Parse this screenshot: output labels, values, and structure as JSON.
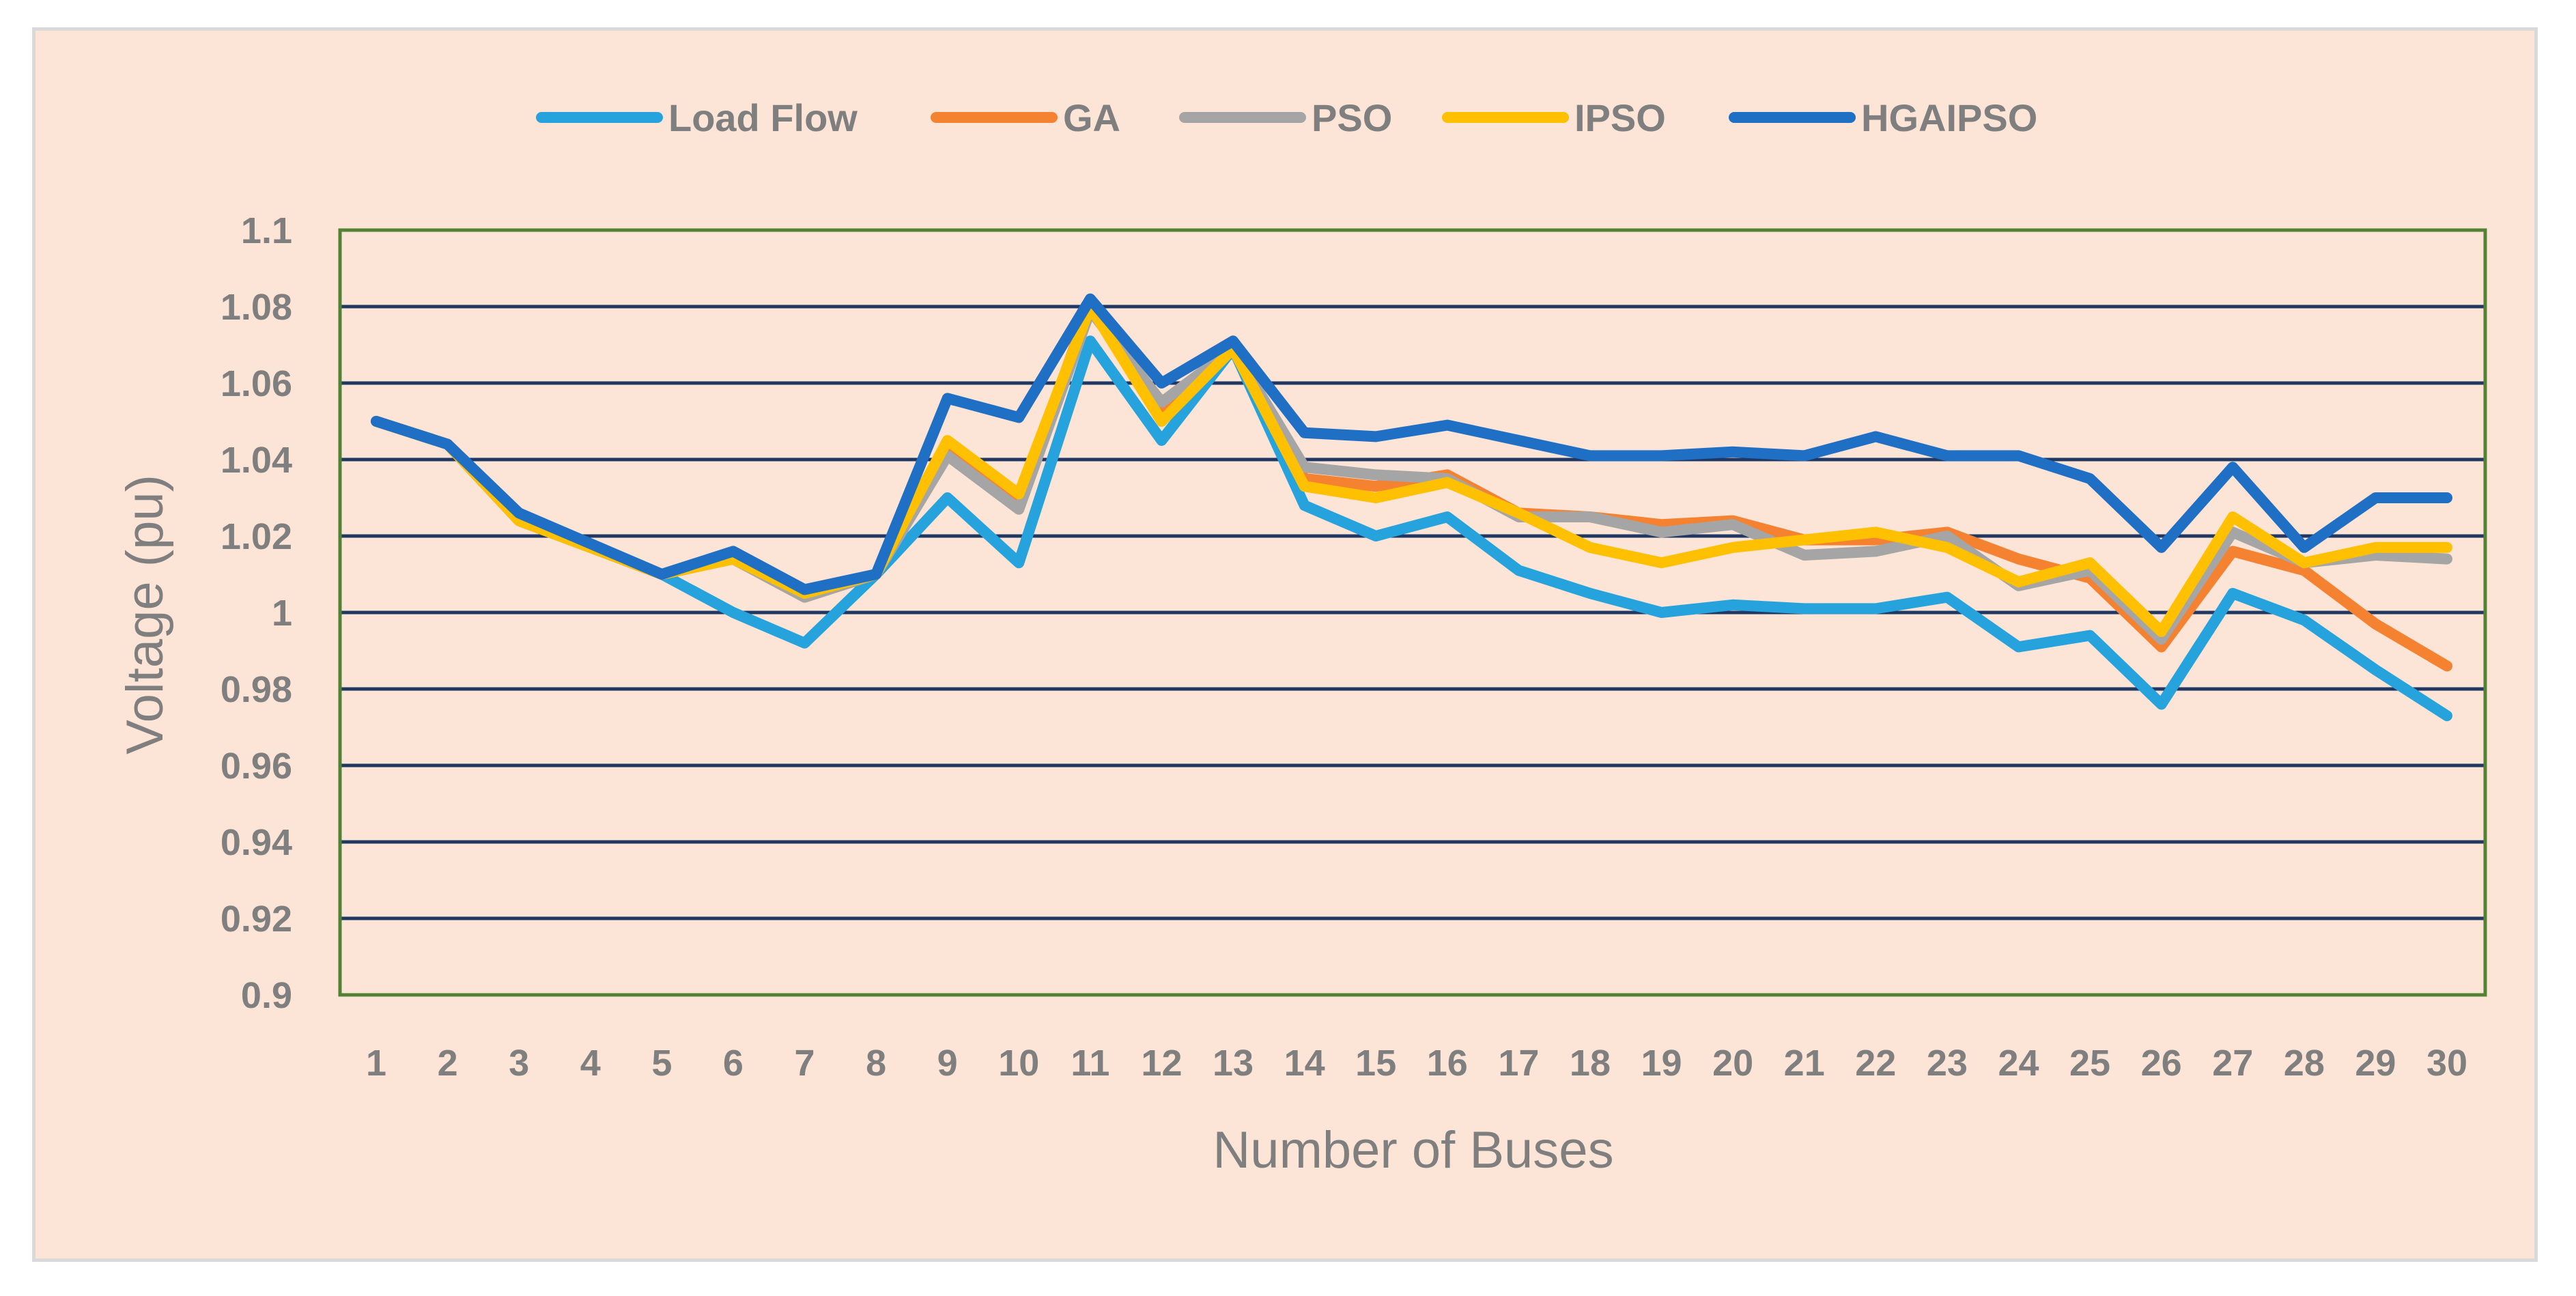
{
  "chart_data": {
    "type": "line",
    "title": "",
    "xlabel": "Number of Buses",
    "ylabel": "Voltage (pu)",
    "ylim": [
      0.9,
      1.1
    ],
    "yticks": [
      "0.9",
      "0.92",
      "0.94",
      "0.96",
      "0.98",
      "1",
      "1.02",
      "1.04",
      "1.06",
      "1.08",
      "1.1"
    ],
    "ytick_values": [
      0.9,
      0.92,
      0.94,
      0.96,
      0.98,
      1.0,
      1.02,
      1.04,
      1.06,
      1.08,
      1.1
    ],
    "categories": [
      "1",
      "2",
      "3",
      "4",
      "5",
      "6",
      "7",
      "8",
      "9",
      "10",
      "11",
      "12",
      "13",
      "14",
      "15",
      "16",
      "17",
      "18",
      "19",
      "20",
      "21",
      "22",
      "23",
      "24",
      "25",
      "26",
      "27",
      "28",
      "29",
      "30"
    ],
    "legend_position": "top",
    "grid": true,
    "colors": {
      "background": "#fce4d6",
      "plot_border": "#548235",
      "gridline": "#1f3864",
      "axis_text": "#7f7f7f"
    },
    "series": [
      {
        "name": "Load Flow",
        "color": "#26a3dc",
        "values": [
          1.05,
          1.044,
          1.024,
          1.017,
          1.01,
          1.0,
          0.992,
          1.01,
          1.03,
          1.013,
          1.071,
          1.045,
          1.069,
          1.028,
          1.02,
          1.025,
          1.011,
          1.005,
          1.0,
          1.002,
          1.001,
          1.001,
          1.004,
          0.991,
          0.994,
          0.976,
          1.005,
          0.998,
          0.985,
          0.973
        ]
      },
      {
        "name": "GA",
        "color": "#f58231",
        "values": [
          1.05,
          1.044,
          1.024,
          1.017,
          1.01,
          1.014,
          1.004,
          1.01,
          1.044,
          1.029,
          1.081,
          1.053,
          1.069,
          1.035,
          1.033,
          1.036,
          1.026,
          1.025,
          1.023,
          1.024,
          1.019,
          1.019,
          1.021,
          1.014,
          1.009,
          0.991,
          1.016,
          1.011,
          0.997,
          0.986
        ]
      },
      {
        "name": "PSO",
        "color": "#a5a5a5",
        "values": [
          1.05,
          1.044,
          1.024,
          1.017,
          1.01,
          1.014,
          1.004,
          1.01,
          1.041,
          1.027,
          1.079,
          1.055,
          1.069,
          1.038,
          1.036,
          1.035,
          1.025,
          1.025,
          1.021,
          1.023,
          1.015,
          1.016,
          1.02,
          1.007,
          1.011,
          0.993,
          1.021,
          1.013,
          1.015,
          1.014
        ]
      },
      {
        "name": "IPSO",
        "color": "#ffc000",
        "values": [
          1.05,
          1.044,
          1.024,
          1.017,
          1.01,
          1.014,
          1.005,
          1.01,
          1.045,
          1.031,
          1.08,
          1.05,
          1.069,
          1.033,
          1.03,
          1.034,
          1.026,
          1.017,
          1.013,
          1.017,
          1.019,
          1.021,
          1.017,
          1.008,
          1.013,
          0.995,
          1.025,
          1.013,
          1.017,
          1.017
        ]
      },
      {
        "name": "HGAIPSO",
        "color": "#1f6fc4",
        "values": [
          1.05,
          1.044,
          1.026,
          1.018,
          1.01,
          1.016,
          1.006,
          1.01,
          1.056,
          1.051,
          1.082,
          1.06,
          1.071,
          1.047,
          1.046,
          1.049,
          1.045,
          1.041,
          1.041,
          1.042,
          1.041,
          1.046,
          1.041,
          1.041,
          1.035,
          1.017,
          1.038,
          1.017,
          1.03,
          1.03
        ]
      }
    ]
  }
}
